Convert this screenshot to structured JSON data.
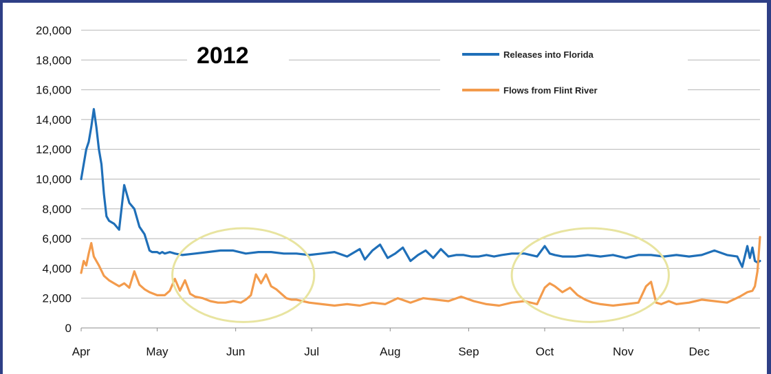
{
  "chart_data": {
    "type": "line",
    "title": "2012",
    "xlabel": "",
    "ylabel": "",
    "ylim": [
      0,
      20000
    ],
    "yticks": [
      "0",
      "2,000",
      "4,000",
      "6,000",
      "8,000",
      "10,000",
      "12,000",
      "14,000",
      "16,000",
      "18,000",
      "20,000"
    ],
    "ytick_values": [
      0,
      2000,
      4000,
      6000,
      8000,
      10000,
      12000,
      14000,
      16000,
      18000,
      20000
    ],
    "xlim": [
      0,
      268
    ],
    "xticks": [
      "Apr",
      "May",
      "Jun",
      "Jul",
      "Aug",
      "Sep",
      "Oct",
      "Nov",
      "Dec"
    ],
    "xtick_values": [
      0,
      30,
      61,
      91,
      122,
      153,
      183,
      214,
      244
    ],
    "grid": true,
    "legend_position": "top-right",
    "colors": {
      "releases": "#1f6fb8",
      "flint": "#f39b4c",
      "ellipse": "#e8e4a0"
    },
    "series": [
      {
        "name": "Releases into Florida",
        "x": [
          0,
          1,
          2,
          3,
          4,
          5,
          6,
          7,
          8,
          9,
          10,
          11,
          13,
          15,
          17,
          19,
          21,
          23,
          25,
          27,
          28,
          29,
          30,
          31,
          32,
          33,
          35,
          37,
          40,
          45,
          50,
          55,
          60,
          65,
          70,
          75,
          80,
          85,
          90,
          95,
          100,
          105,
          110,
          112,
          115,
          118,
          121,
          124,
          127,
          130,
          133,
          136,
          139,
          142,
          145,
          148,
          151,
          154,
          157,
          160,
          163,
          166,
          170,
          175,
          180,
          183,
          185,
          187,
          190,
          195,
          200,
          205,
          210,
          215,
          220,
          225,
          230,
          235,
          240,
          245,
          250,
          255,
          259,
          261,
          263,
          264,
          265,
          266,
          267,
          268
        ],
        "y": [
          10000,
          11000,
          12000,
          12500,
          13500,
          14700,
          13500,
          12000,
          11000,
          9000,
          7500,
          7200,
          7000,
          6600,
          9600,
          8400,
          8000,
          6800,
          6300,
          5200,
          5100,
          5100,
          5100,
          5000,
          5100,
          5000,
          5100,
          5000,
          4900,
          5000,
          5100,
          5200,
          5200,
          5000,
          5100,
          5100,
          5000,
          5000,
          4900,
          5000,
          5100,
          4800,
          5300,
          4600,
          5200,
          5600,
          4700,
          5000,
          5400,
          4500,
          4900,
          5200,
          4700,
          5300,
          4800,
          4900,
          4900,
          4800,
          4800,
          4900,
          4800,
          4900,
          5000,
          5000,
          4800,
          5500,
          5000,
          4900,
          4800,
          4800,
          4900,
          4800,
          4900,
          4700,
          4900,
          4900,
          4800,
          4900,
          4800,
          4900,
          5200,
          4900,
          4800,
          4100,
          5500,
          4700,
          5400,
          4500,
          4400,
          4500
        ]
      },
      {
        "name": "Flows from Flint River",
        "x": [
          0,
          1,
          2,
          3,
          4,
          5,
          7,
          9,
          11,
          13,
          15,
          17,
          19,
          21,
          23,
          25,
          27,
          30,
          33,
          35,
          37,
          39,
          41,
          43,
          45,
          48,
          51,
          54,
          57,
          60,
          63,
          65,
          67,
          69,
          71,
          73,
          75,
          77,
          79,
          81,
          83,
          85,
          90,
          95,
          100,
          105,
          110,
          115,
          120,
          125,
          130,
          135,
          140,
          145,
          150,
          155,
          160,
          165,
          170,
          175,
          180,
          183,
          185,
          187,
          190,
          193,
          196,
          199,
          202,
          205,
          210,
          215,
          220,
          223,
          225,
          227,
          229,
          232,
          235,
          240,
          245,
          250,
          255,
          260,
          263,
          265,
          266,
          267,
          268
        ],
        "y": [
          3700,
          4500,
          4200,
          5000,
          5700,
          4800,
          4200,
          3500,
          3200,
          3000,
          2800,
          3000,
          2700,
          3800,
          2900,
          2600,
          2400,
          2200,
          2200,
          2500,
          3300,
          2500,
          3200,
          2300,
          2100,
          2000,
          1800,
          1700,
          1700,
          1800,
          1700,
          1900,
          2200,
          3600,
          3000,
          3600,
          2800,
          2600,
          2300,
          2000,
          1900,
          1900,
          1700,
          1600,
          1500,
          1600,
          1500,
          1700,
          1600,
          2000,
          1700,
          2000,
          1900,
          1800,
          2100,
          1800,
          1600,
          1500,
          1700,
          1800,
          1600,
          2700,
          3000,
          2800,
          2400,
          2700,
          2200,
          1900,
          1700,
          1600,
          1500,
          1600,
          1700,
          2800,
          3100,
          1700,
          1600,
          1800,
          1600,
          1700,
          1900,
          1800,
          1700,
          2100,
          2400,
          2500,
          2800,
          3800,
          6100
        ]
      }
    ],
    "annotations": [
      {
        "label": "",
        "x_range": [
          36,
          92
        ],
        "y_range": [
          400,
          6700
        ]
      },
      {
        "label": "",
        "x_range": [
          170,
          232
        ],
        "y_range": [
          400,
          6700
        ]
      }
    ]
  }
}
